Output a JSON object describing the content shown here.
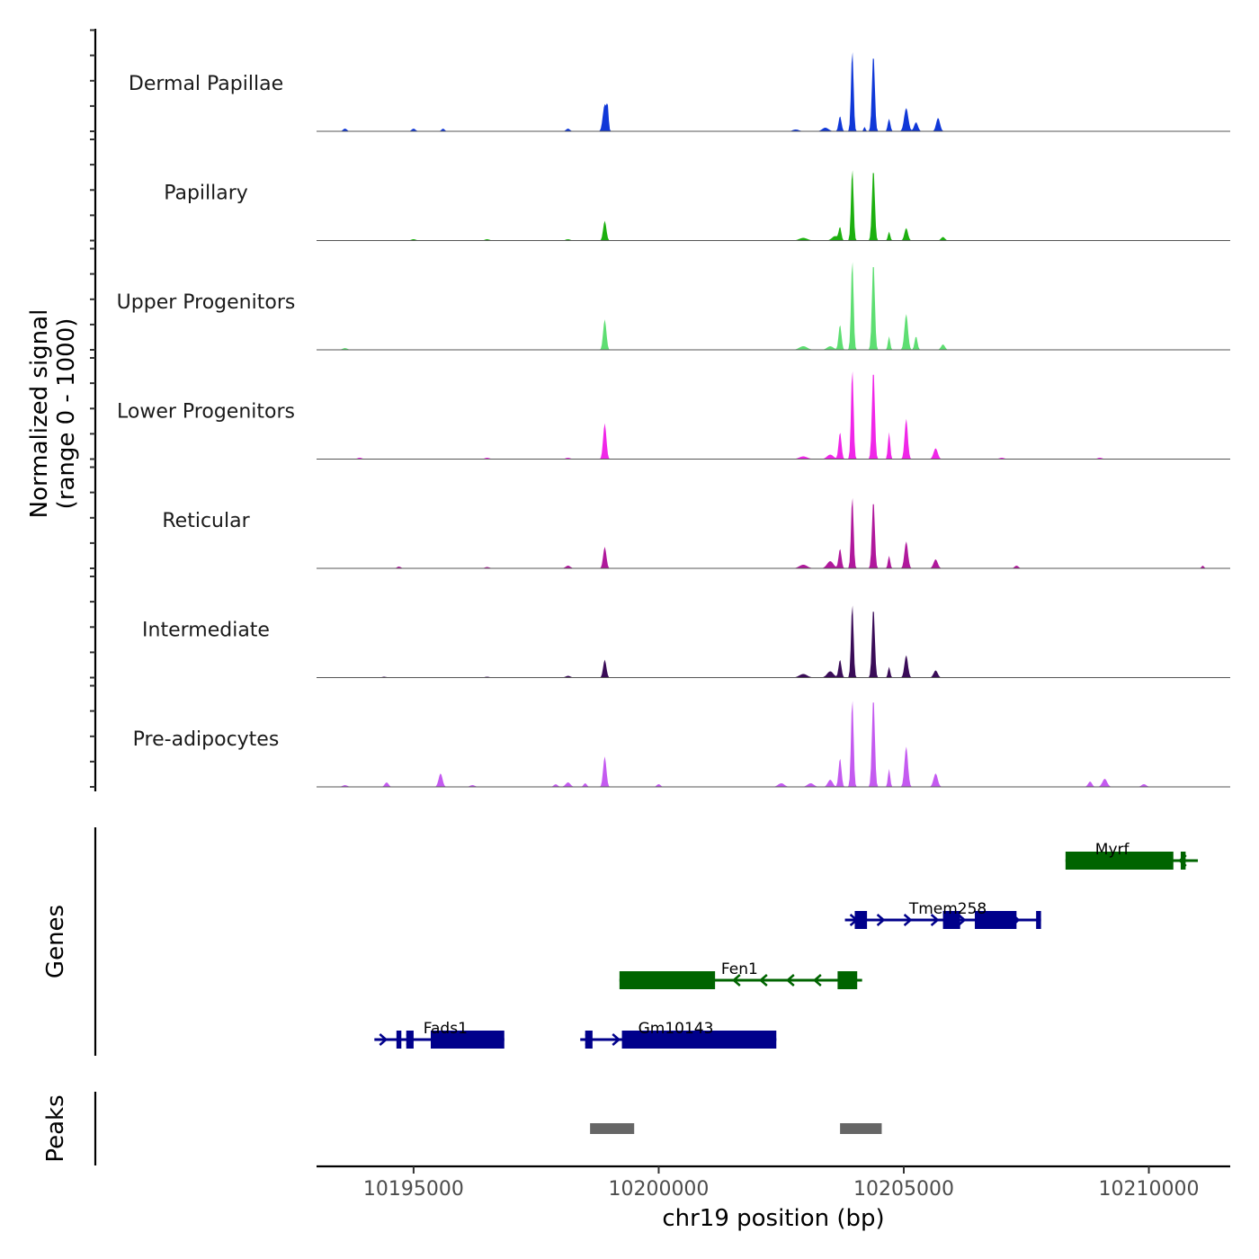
{
  "chart_data": {
    "type": "area",
    "title": "",
    "chromosome": "chr19",
    "xlabel": "chr19 position (bp)",
    "ylabel_line1": "Normalized signal",
    "ylabel_line2": "(range 0 - 1000)",
    "xlim": [
      10193020,
      10211660
    ],
    "ylim": [
      0,
      1000
    ],
    "x_ticks": [
      10195000,
      10200000,
      10205000,
      10210000
    ],
    "x_tick_labels": [
      "10195000",
      "10200000",
      "10205000",
      "10210000"
    ],
    "grid": false,
    "tracks": [
      {
        "name": "Dermal Papillae",
        "color": "#1038d8",
        "peaks": [
          [
            10193600,
            0.03,
            120
          ],
          [
            10195000,
            0.03,
            120
          ],
          [
            10195600,
            0.03,
            100
          ],
          [
            10198150,
            0.03,
            120
          ],
          [
            10198900,
            0.3,
            120
          ],
          [
            10198960,
            0.22,
            60
          ],
          [
            10202800,
            0.02,
            200
          ],
          [
            10203400,
            0.04,
            200
          ],
          [
            10203700,
            0.17,
            90
          ],
          [
            10203950,
            0.9,
            80
          ],
          [
            10204200,
            0.05,
            60
          ],
          [
            10204380,
            0.86,
            90
          ],
          [
            10204700,
            0.14,
            80
          ],
          [
            10205050,
            0.26,
            130
          ],
          [
            10205250,
            0.1,
            120
          ],
          [
            10205700,
            0.15,
            120
          ]
        ]
      },
      {
        "name": "Papillary",
        "color": "#1db010",
        "peaks": [
          [
            10195000,
            0.015,
            150
          ],
          [
            10196500,
            0.015,
            150
          ],
          [
            10198150,
            0.015,
            150
          ],
          [
            10198900,
            0.22,
            100
          ],
          [
            10202950,
            0.03,
            250
          ],
          [
            10203600,
            0.05,
            200
          ],
          [
            10203700,
            0.14,
            80
          ],
          [
            10203950,
            0.8,
            80
          ],
          [
            10204380,
            0.8,
            90
          ],
          [
            10204700,
            0.1,
            70
          ],
          [
            10205050,
            0.14,
            110
          ],
          [
            10205800,
            0.04,
            120
          ]
        ]
      },
      {
        "name": "Upper Progenitors",
        "color": "#5ede72",
        "peaks": [
          [
            10193600,
            0.02,
            150
          ],
          [
            10198900,
            0.34,
            100
          ],
          [
            10202950,
            0.04,
            250
          ],
          [
            10203500,
            0.04,
            200
          ],
          [
            10203700,
            0.28,
            90
          ],
          [
            10203950,
            1.0,
            80
          ],
          [
            10204380,
            0.98,
            90
          ],
          [
            10204700,
            0.15,
            70
          ],
          [
            10205050,
            0.4,
            110
          ],
          [
            10205250,
            0.15,
            90
          ],
          [
            10205800,
            0.06,
            120
          ]
        ]
      },
      {
        "name": "Lower Progenitors",
        "color": "#f026e8",
        "peaks": [
          [
            10193900,
            0.015,
            150
          ],
          [
            10196500,
            0.015,
            150
          ],
          [
            10198150,
            0.015,
            150
          ],
          [
            10198900,
            0.4,
            100
          ],
          [
            10202950,
            0.03,
            250
          ],
          [
            10203500,
            0.05,
            200
          ],
          [
            10203700,
            0.3,
            90
          ],
          [
            10203950,
            1.0,
            80
          ],
          [
            10204380,
            1.0,
            90
          ],
          [
            10204700,
            0.3,
            70
          ],
          [
            10205050,
            0.45,
            100
          ],
          [
            10205650,
            0.12,
            130
          ],
          [
            10207000,
            0.015,
            150
          ],
          [
            10209000,
            0.015,
            150
          ]
        ]
      },
      {
        "name": "Reticular",
        "color": "#b0189c",
        "peaks": [
          [
            10194700,
            0.02,
            120
          ],
          [
            10196500,
            0.015,
            150
          ],
          [
            10198150,
            0.03,
            150
          ],
          [
            10198900,
            0.24,
            100
          ],
          [
            10202950,
            0.04,
            250
          ],
          [
            10203500,
            0.08,
            200
          ],
          [
            10203700,
            0.22,
            90
          ],
          [
            10203950,
            0.8,
            80
          ],
          [
            10204380,
            0.76,
            90
          ],
          [
            10204700,
            0.14,
            70
          ],
          [
            10205050,
            0.3,
            110
          ],
          [
            10205650,
            0.1,
            130
          ],
          [
            10207300,
            0.03,
            120
          ],
          [
            10211100,
            0.03,
            80
          ]
        ]
      },
      {
        "name": "Intermediate",
        "color": "#3a0c58",
        "peaks": [
          [
            10194400,
            0.01,
            150
          ],
          [
            10196500,
            0.01,
            150
          ],
          [
            10198150,
            0.02,
            150
          ],
          [
            10198900,
            0.2,
            100
          ],
          [
            10202950,
            0.04,
            250
          ],
          [
            10203500,
            0.07,
            200
          ],
          [
            10203700,
            0.2,
            90
          ],
          [
            10203950,
            0.82,
            80
          ],
          [
            10204380,
            0.78,
            90
          ],
          [
            10204700,
            0.12,
            70
          ],
          [
            10205050,
            0.25,
            110
          ],
          [
            10205650,
            0.08,
            130
          ]
        ]
      },
      {
        "name": "Pre-adipocytes",
        "color": "#c45af0",
        "peaks": [
          [
            10193600,
            0.02,
            150
          ],
          [
            10194450,
            0.05,
            120
          ],
          [
            10195550,
            0.15,
            120
          ],
          [
            10196200,
            0.02,
            150
          ],
          [
            10197900,
            0.03,
            120
          ],
          [
            10198150,
            0.05,
            150
          ],
          [
            10198500,
            0.04,
            100
          ],
          [
            10198900,
            0.34,
            100
          ],
          [
            10200000,
            0.03,
            120
          ],
          [
            10202500,
            0.04,
            200
          ],
          [
            10203100,
            0.04,
            200
          ],
          [
            10203500,
            0.08,
            150
          ],
          [
            10203700,
            0.32,
            90
          ],
          [
            10203950,
            0.98,
            80
          ],
          [
            10204380,
            1.0,
            90
          ],
          [
            10204700,
            0.2,
            70
          ],
          [
            10205050,
            0.45,
            110
          ],
          [
            10205650,
            0.15,
            130
          ],
          [
            10208800,
            0.06,
            120
          ],
          [
            10209100,
            0.09,
            150
          ],
          [
            10209900,
            0.03,
            150
          ]
        ]
      }
    ],
    "genes": [
      {
        "name": "Myrf",
        "strand": "-",
        "color": "#006400",
        "row": 1,
        "start": 10208300,
        "end": 10211000,
        "exons": [
          [
            10208300,
            10210500
          ],
          [
            10210650,
            10210750
          ]
        ]
      },
      {
        "name": "Tmem258",
        "strand": "+",
        "color": "#00008b",
        "row": 2,
        "start": 10203800,
        "end": 10207800,
        "exons": [
          [
            10204000,
            10204250
          ],
          [
            10205800,
            10206150
          ],
          [
            10206450,
            10207300
          ],
          [
            10207700,
            10207800
          ]
        ]
      },
      {
        "name": "Fen1",
        "strand": "-",
        "color": "#006400",
        "row": 3,
        "start": 10199200,
        "end": 10204150,
        "exons": [
          [
            10199200,
            10201150
          ],
          [
            10203650,
            10204050
          ]
        ]
      },
      {
        "name": "Fads1",
        "strand": "+",
        "color": "#00008b",
        "row": 4,
        "start": 10194200,
        "end": 10196850,
        "exons": [
          [
            10194650,
            10194750
          ],
          [
            10194850,
            10195000
          ],
          [
            10195350,
            10196850
          ]
        ]
      },
      {
        "name": "Gm10143",
        "strand": "+",
        "color": "#00008b",
        "row": 4,
        "start": 10198400,
        "end": 10202400,
        "exons": [
          [
            10198500,
            10198650
          ],
          [
            10199250,
            10202400
          ]
        ]
      }
    ],
    "peaks_track": [
      [
        10198600,
        10199500
      ],
      [
        10203700,
        10204550
      ]
    ],
    "peaks_color": "#666666"
  },
  "panels": {
    "genes_label": "Genes",
    "peaks_label": "Peaks"
  }
}
